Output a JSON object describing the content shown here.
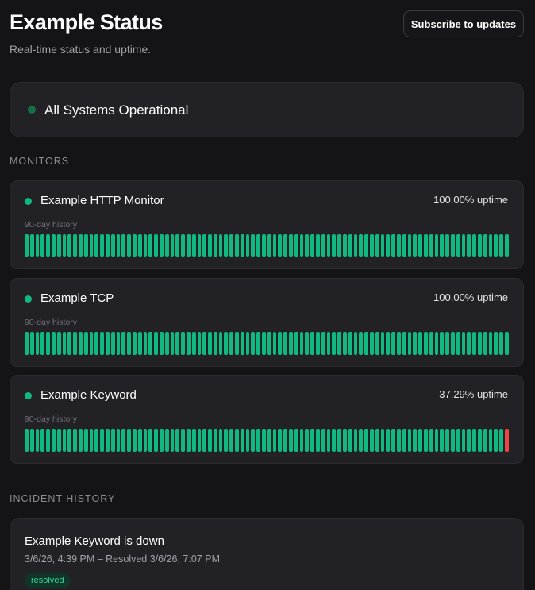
{
  "header": {
    "title": "Example Status",
    "subtitle": "Real-time status and uptime.",
    "subscribe_label": "Subscribe to updates"
  },
  "overall_status": {
    "text": "All Systems Operational",
    "color": "#15704a"
  },
  "monitors_section": {
    "label": "MONITORS"
  },
  "monitors": [
    {
      "name": "Example HTTP Monitor",
      "uptime": "100.00% uptime",
      "history_label": "90-day history",
      "history": [
        "up",
        "up",
        "up",
        "up",
        "up",
        "up",
        "up",
        "up",
        "up",
        "up",
        "up",
        "up",
        "up",
        "up",
        "up",
        "up",
        "up",
        "up",
        "up",
        "up",
        "up",
        "up",
        "up",
        "up",
        "up",
        "up",
        "up",
        "up",
        "up",
        "up",
        "up",
        "up",
        "up",
        "up",
        "up",
        "up",
        "up",
        "up",
        "up",
        "up",
        "up",
        "up",
        "up",
        "up",
        "up",
        "up",
        "up",
        "up",
        "up",
        "up",
        "up",
        "up",
        "up",
        "up",
        "up",
        "up",
        "up",
        "up",
        "up",
        "up",
        "up",
        "up",
        "up",
        "up",
        "up",
        "up",
        "up",
        "up",
        "up",
        "up",
        "up",
        "up",
        "up",
        "up",
        "up",
        "up",
        "up",
        "up",
        "up",
        "up",
        "up",
        "up",
        "up",
        "up",
        "up",
        "up",
        "up",
        "up",
        "up",
        "up"
      ]
    },
    {
      "name": "Example TCP",
      "uptime": "100.00% uptime",
      "history_label": "90-day history",
      "history": [
        "up",
        "up",
        "up",
        "up",
        "up",
        "up",
        "up",
        "up",
        "up",
        "up",
        "up",
        "up",
        "up",
        "up",
        "up",
        "up",
        "up",
        "up",
        "up",
        "up",
        "up",
        "up",
        "up",
        "up",
        "up",
        "up",
        "up",
        "up",
        "up",
        "up",
        "up",
        "up",
        "up",
        "up",
        "up",
        "up",
        "up",
        "up",
        "up",
        "up",
        "up",
        "up",
        "up",
        "up",
        "up",
        "up",
        "up",
        "up",
        "up",
        "up",
        "up",
        "up",
        "up",
        "up",
        "up",
        "up",
        "up",
        "up",
        "up",
        "up",
        "up",
        "up",
        "up",
        "up",
        "up",
        "up",
        "up",
        "up",
        "up",
        "up",
        "up",
        "up",
        "up",
        "up",
        "up",
        "up",
        "up",
        "up",
        "up",
        "up",
        "up",
        "up",
        "up",
        "up",
        "up",
        "up",
        "up",
        "up",
        "up",
        "up"
      ]
    },
    {
      "name": "Example Keyword",
      "uptime": "37.29% uptime",
      "history_label": "90-day history",
      "history": [
        "up",
        "up",
        "up",
        "up",
        "up",
        "up",
        "up",
        "up",
        "up",
        "up",
        "up",
        "up",
        "up",
        "up",
        "up",
        "up",
        "up",
        "up",
        "up",
        "up",
        "up",
        "up",
        "up",
        "up",
        "up",
        "up",
        "up",
        "up",
        "up",
        "up",
        "up",
        "up",
        "up",
        "up",
        "up",
        "up",
        "up",
        "up",
        "up",
        "up",
        "up",
        "up",
        "up",
        "up",
        "up",
        "up",
        "up",
        "up",
        "up",
        "up",
        "up",
        "up",
        "up",
        "up",
        "up",
        "up",
        "up",
        "up",
        "up",
        "up",
        "up",
        "up",
        "up",
        "up",
        "up",
        "up",
        "up",
        "up",
        "up",
        "up",
        "up",
        "up",
        "up",
        "up",
        "up",
        "up",
        "up",
        "up",
        "up",
        "up",
        "up",
        "up",
        "up",
        "up",
        "up",
        "up",
        "up",
        "up",
        "up",
        "down"
      ]
    }
  ],
  "incident_section": {
    "label": "INCIDENT HISTORY"
  },
  "incidents": [
    {
      "title": "Example Keyword is down",
      "time": "3/6/26, 4:39 PM – Resolved 3/6/26, 7:07 PM",
      "status": "resolved"
    }
  ],
  "colors": {
    "up": "#10b981",
    "down": "#ef4444",
    "background": "#141417",
    "card": "#222226"
  },
  "icons": {
    "status_dot": "status-dot-icon"
  }
}
